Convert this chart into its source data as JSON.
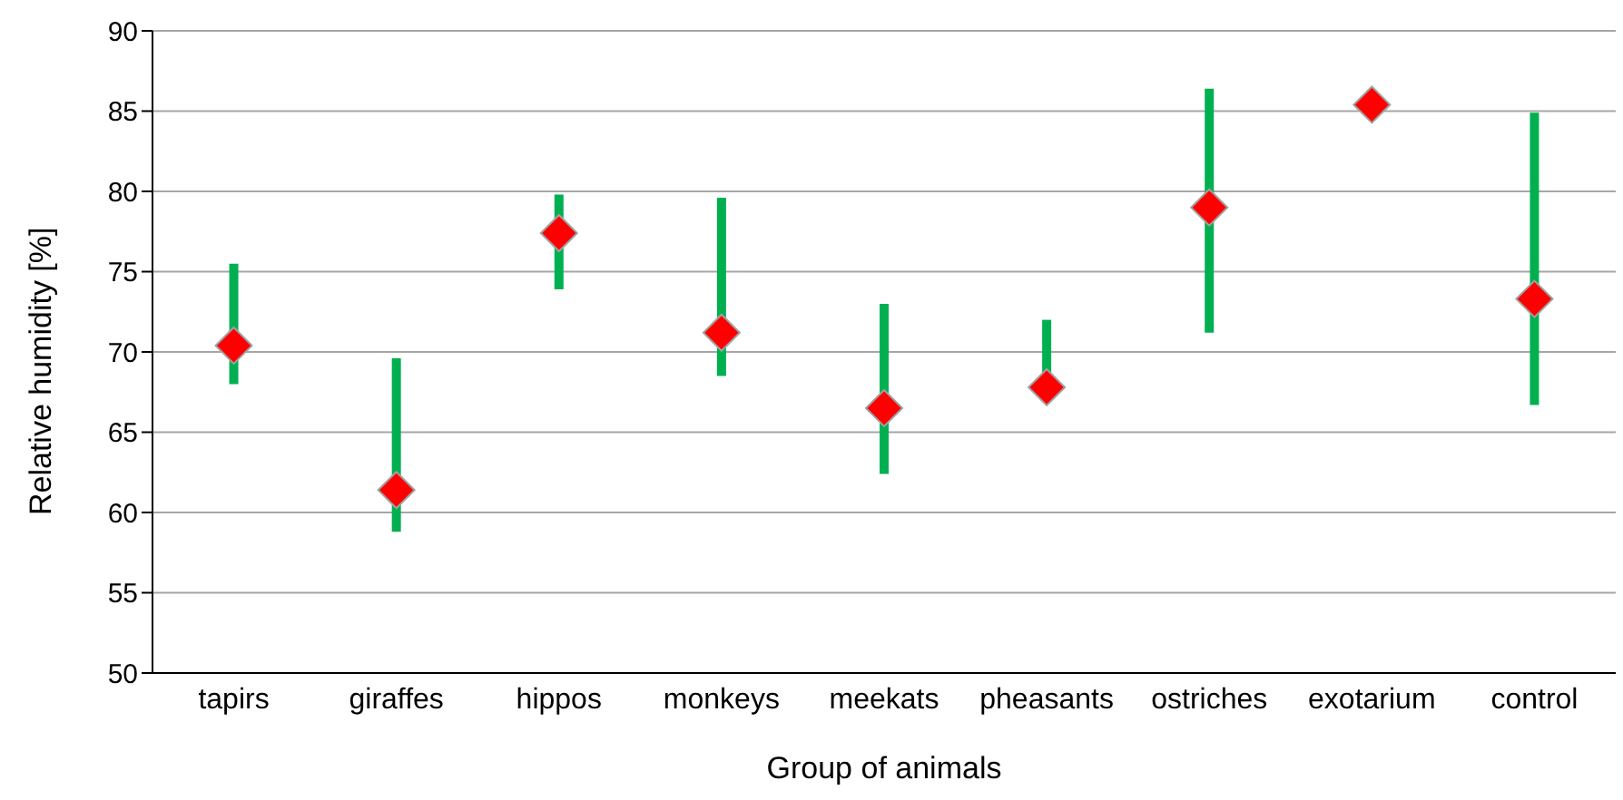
{
  "chart_data": {
    "type": "scatter",
    "xlabel": "Group of animals",
    "ylabel": "Relative humidity [%]",
    "categories": [
      "tapirs",
      "giraffes",
      "hippos",
      "monkeys",
      "meekats",
      "pheasants",
      "ostriches",
      "exotarium",
      "control"
    ],
    "series": [
      {
        "color": "#ff0000",
        "values": [
          70.4,
          61.4,
          77.4,
          71.2,
          66.5,
          67.8,
          79.0,
          85.4,
          73.3
        ],
        "errors": [
          [
            68.0,
            75.5
          ],
          [
            58.8,
            69.6
          ],
          [
            73.9,
            79.8
          ],
          [
            68.5,
            79.6
          ],
          [
            62.4,
            73.0
          ],
          [
            67.8,
            72.0
          ],
          [
            71.2,
            86.4
          ],
          null,
          [
            66.7,
            84.9
          ]
        ]
      }
    ],
    "ylim": [
      50,
      90
    ],
    "yticks": [
      50,
      55,
      60,
      65,
      70,
      75,
      80,
      85,
      90
    ],
    "grid": "y",
    "legend": false,
    "marker": "diamond"
  }
}
